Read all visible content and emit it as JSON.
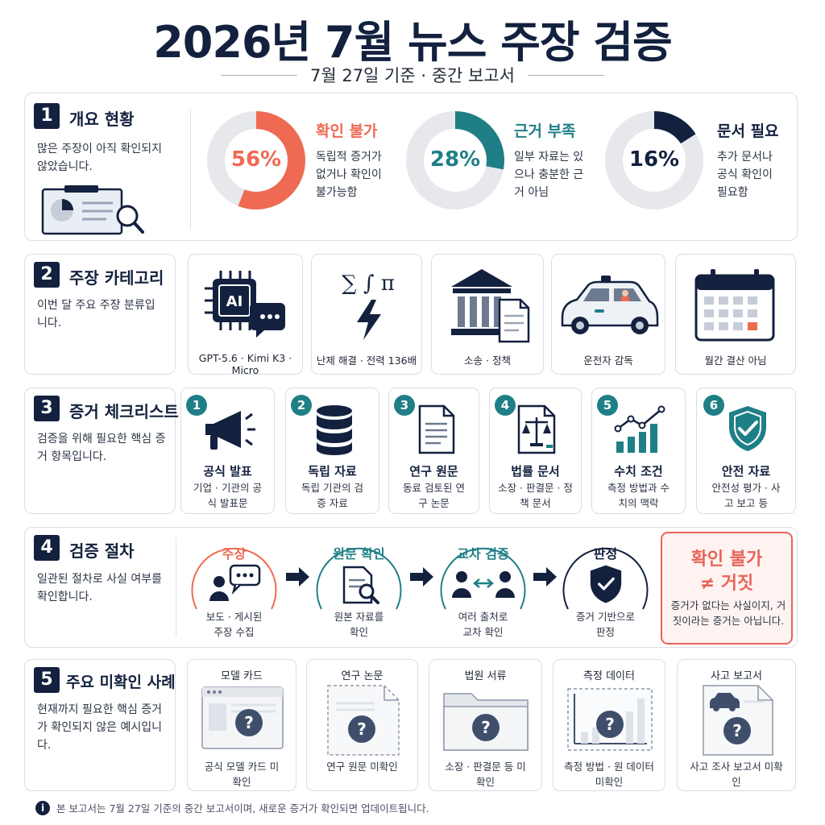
{
  "header": {
    "title": "2026년 7월 뉴스 주장 검증",
    "subtitle": "7월 27일 기준 · 중간 보고서"
  },
  "colors": {
    "navy": "#13213f",
    "coral": "#ef6a52",
    "teal": "#1f7f86",
    "gray_ring": "#e6e8ec",
    "warn_red": "#e8645a"
  },
  "section1": {
    "number": "1",
    "title": "개요 현황",
    "description": "많은 주장이 아직 확인되지 않았습니다.",
    "icon": "report-magnifier-icon",
    "donuts": [
      {
        "percent_label": "56%",
        "value": 56,
        "label": "확인 불가",
        "description": "독립적 증거가 없거나 확인이 불가능함",
        "color": "#ef6a52"
      },
      {
        "percent_label": "28%",
        "value": 28,
        "label": "근거 부족",
        "description": "일부 자료는 있으나 충분한 근거 아님",
        "color": "#1f7f86"
      },
      {
        "percent_label": "16%",
        "value": 16,
        "label": "문서 필요",
        "description": "추가 문서나 공식 확인이 필요함",
        "color": "#13213f"
      }
    ]
  },
  "section2": {
    "number": "2",
    "title": "주장 카테고리",
    "description": "이번 달 주요 주장 분류입니다.",
    "categories": [
      {
        "label": "GPT-5.6 · Kimi K3 · Micro",
        "icon": "ai-chip-chat-icon",
        "chip_text": "AI"
      },
      {
        "label": "난제 해결 · 전력 136배",
        "icon": "math-lightning-icon",
        "symbols": "∑  ∫  π"
      },
      {
        "label": "소송 · 정책",
        "icon": "courthouse-document-icon"
      },
      {
        "label": "운전자 감독",
        "icon": "robotaxi-car-icon"
      },
      {
        "label": "월간 결산 아님",
        "icon": "calendar-icon"
      }
    ]
  },
  "section3": {
    "number": "3",
    "title": "증거 체크리스트",
    "description": "검증을 위해 필요한 핵심 증거 항목입니다.",
    "items": [
      {
        "num": "1",
        "title": "공식 발표",
        "description": "기업 · 기관의 공식 발표문",
        "icon": "megaphone-icon"
      },
      {
        "num": "2",
        "title": "독립 자료",
        "description": "독립 기관의 검증 자료",
        "icon": "database-icon"
      },
      {
        "num": "3",
        "title": "연구 원문",
        "description": "동료 검토된 연구 논문",
        "icon": "document-icon"
      },
      {
        "num": "4",
        "title": "법률 문서",
        "description": "소장 · 판결문 · 정책 문서",
        "icon": "scales-document-icon"
      },
      {
        "num": "5",
        "title": "수치 조건",
        "description": "측정 방법과 수치의 맥락",
        "icon": "bar-line-chart-icon"
      },
      {
        "num": "6",
        "title": "안전 자료",
        "description": "안전성 평가 · 사고 보고 등",
        "icon": "shield-check-icon"
      }
    ]
  },
  "section4": {
    "number": "4",
    "title": "검증 절차",
    "description": "일관된 절차로 사실 여부를 확인합니다.",
    "steps": [
      {
        "title": "주장",
        "description": "보도 · 게시된 주장 수집",
        "icon": "person-speech-icon",
        "color": "#ef6a52"
      },
      {
        "title": "원문 확인",
        "description": "원본 자료를 확인",
        "icon": "document-search-icon",
        "color": "#1f7f86"
      },
      {
        "title": "교차 검증",
        "description": "여러 출처로 교차 확인",
        "icon": "people-exchange-icon",
        "color": "#1f7f86"
      },
      {
        "title": "판정",
        "description": "증거 기반으로 판정",
        "icon": "shield-check-icon",
        "color": "#13213f"
      }
    ],
    "warning": {
      "line1": "확인 불가",
      "line2": "≠ 거짓",
      "description": "증거가 없다는 사실이지, 거짓이라는 증거는 아닙니다."
    }
  },
  "section5": {
    "number": "5",
    "title": "주요 미확인 사례",
    "description": "현재까지 필요한 핵심 증거가 확인되지 않은 예시입니다.",
    "cases": [
      {
        "heading": "모델 카드",
        "description": "공식 모델 카드 미확인",
        "icon": "browser-question-icon"
      },
      {
        "heading": "연구 논문",
        "description": "연구 원문 미확인",
        "icon": "paper-question-icon"
      },
      {
        "heading": "법원 서류",
        "description": "소장 · 판결문 등 미확인",
        "icon": "folder-question-icon"
      },
      {
        "heading": "측정 데이터",
        "description": "측정 방법 · 원 데이터 미확인",
        "icon": "chart-question-icon"
      },
      {
        "heading": "사고 보고서",
        "description": "사고 조사 보고서 미확인",
        "icon": "car-report-question-icon"
      }
    ]
  },
  "footer": {
    "note": "본 보고서는 7월 27일 기준의 중간 보고서이며, 새로운 증거가 확인되면 업데이트됩니다."
  }
}
